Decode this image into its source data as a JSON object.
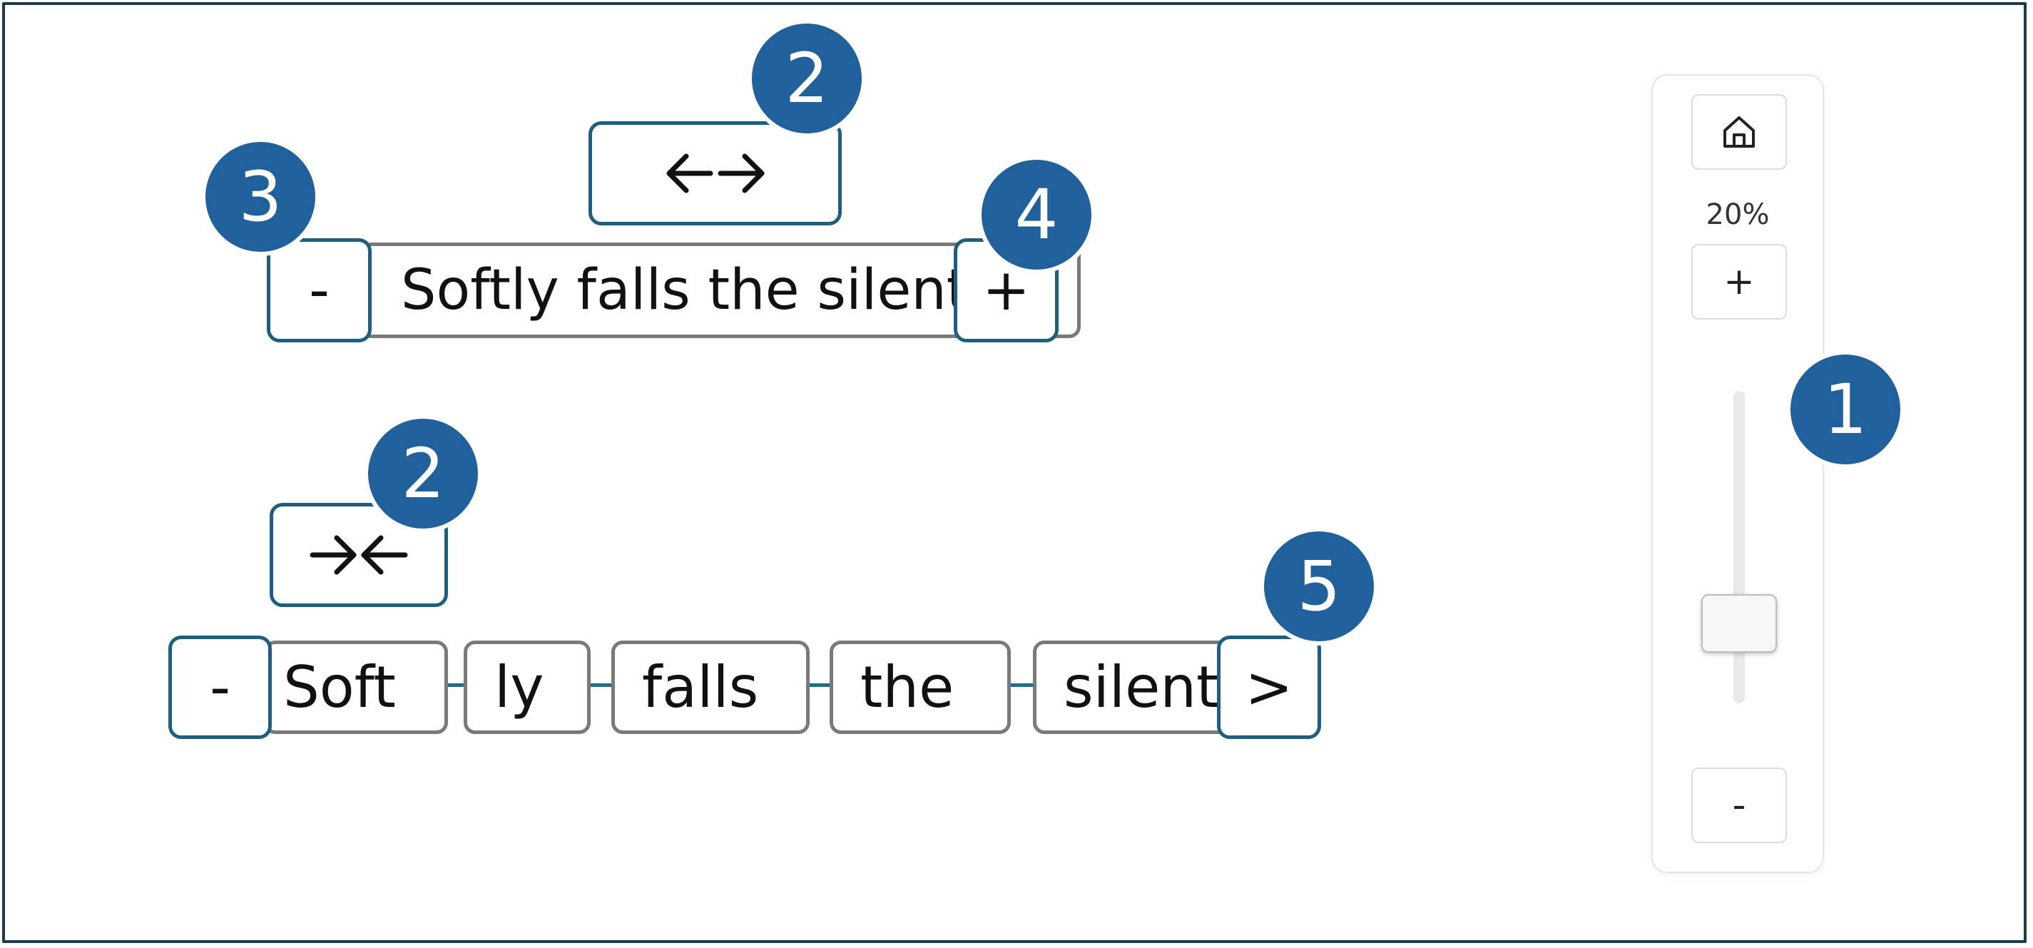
{
  "top_group": {
    "expand_icon": "left-right-arrows-icon",
    "minus_label": "-",
    "text": "Softly falls the silent",
    "plus_label": "+"
  },
  "bottom_group": {
    "collapse_icon": "inward-arrows-icon",
    "minus_label": "-",
    "segments": [
      "Soft",
      "ly",
      "falls",
      "the",
      "silent"
    ],
    "next_label": ">"
  },
  "badges": [
    "1",
    "2",
    "3",
    "4",
    "2",
    "5"
  ],
  "zoom": {
    "home_icon": "home-icon",
    "level": "20%",
    "zoom_in_label": "+",
    "zoom_out_label": "-",
    "slider_value": 0.2
  },
  "colors": {
    "badge": "#20609b",
    "accent_border": "#1e5f80",
    "gray_border": "#7a7a7a",
    "frame": "#1b3b4b"
  }
}
